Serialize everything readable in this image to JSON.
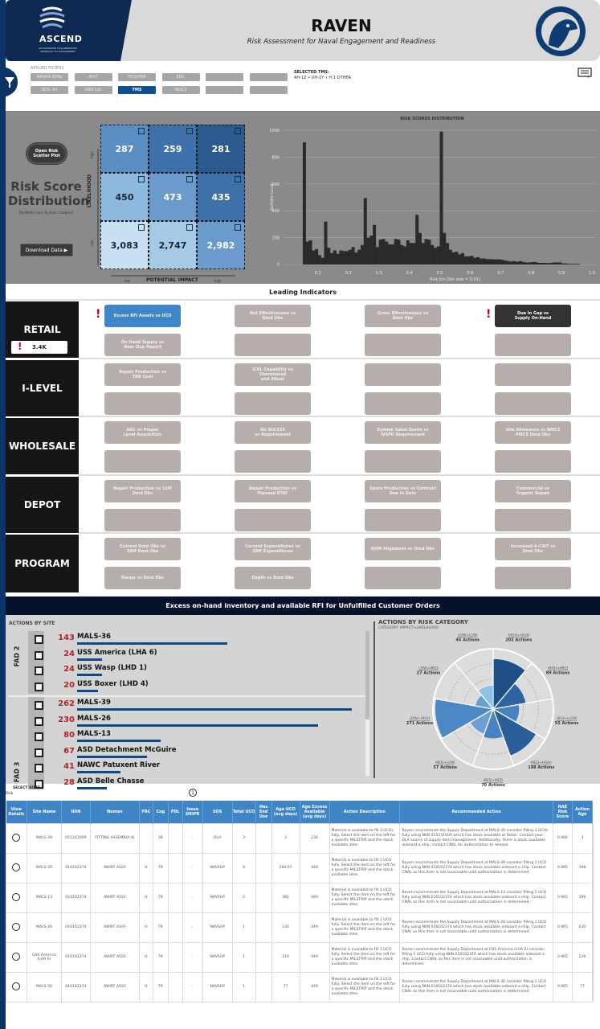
{
  "header": {
    "title": "RAVEN",
    "subtitle": "Risk Assessment for Naval Engagement and Readiness",
    "logo_text": "ASCEND",
    "logo_tagline": "AN ADVANCED COLLABORATIVE APPROACH TO SUSTAINMENT",
    "colors": {
      "navy": "#0e2a52",
      "banner": "#d9d9d9"
    }
  },
  "filters": {
    "label": "APPLIED FILTERS",
    "row1": [
      "AMSRR NIINs",
      "INST",
      "PEO/PMA",
      "EOC",
      "",
      ""
    ],
    "row2": [
      "SOS: All",
      "NIIN List",
      "TMS",
      "WUC2",
      "",
      ""
    ],
    "active": "TMS",
    "selected_tms_label": "SELECTED TMS:",
    "selected_tms_value": "AH-1Z • UH-1Y • H-1 OTHER",
    "icons": [
      "filter-icon",
      "comment-icon"
    ]
  },
  "risk": {
    "open_scatter": "Open Risk Scatter Plot",
    "title": "Risk Score Distribution",
    "caption": "[NoRNIIN count by Risk Category]",
    "download": "Download Data ▶",
    "y_axis": "LIKELIHOOD",
    "y_high": "high",
    "y_low": "low",
    "x_axis": "POTENTIAL IMPACT",
    "x_low": "low",
    "x_high": "high",
    "matrix": [
      [
        "287",
        "259",
        "281"
      ],
      [
        "450",
        "473",
        "435"
      ],
      [
        "3,083",
        "2,747",
        "2,982"
      ]
    ]
  },
  "chart_data": {
    "type": "bar",
    "title": "RISK SCORES DISTRIBUTION",
    "xlabel": "Risk bin [bin size = 0.01]",
    "ylabel": "NoRNIIN Count",
    "xlim": [
      0,
      1.0
    ],
    "ylim": [
      0,
      1000
    ],
    "x_ticks": [
      "0.1",
      "0.2",
      "0.3",
      "0.4",
      "0.5",
      "0.6",
      "0.7",
      "0.8",
      "0.9",
      "1.0"
    ],
    "y_ticks": [
      "0",
      "200",
      "400",
      "600",
      "800",
      "1000"
    ],
    "grid": true,
    "bin_start": 0.05,
    "bin_size": 0.01,
    "values": [
      910,
      170,
      180,
      105,
      115,
      70,
      50,
      320,
      125,
      85,
      105,
      80,
      105,
      100,
      100,
      110,
      130,
      90,
      110,
      145,
      495,
      200,
      215,
      295,
      130,
      185,
      190,
      170,
      150,
      150,
      190,
      185,
      145,
      135,
      180,
      160,
      160,
      370,
      235,
      160,
      190,
      185,
      145,
      125,
      135,
      990,
      235,
      160,
      110,
      90,
      95,
      75,
      85,
      60,
      60,
      65,
      50,
      55,
      45,
      45,
      40,
      40,
      38,
      38,
      38,
      35,
      30,
      25,
      22,
      25,
      20,
      25,
      18,
      15,
      15,
      18,
      18,
      12,
      12,
      12,
      10,
      12,
      15,
      15,
      15,
      8,
      8,
      5,
      5,
      5,
      5
    ]
  },
  "leading": {
    "title": "Leading Indicators",
    "retail_badge": "3.4K",
    "sections": [
      {
        "label": "RETAIL",
        "buttons": [
          "Excess RFI Assets vs UCO",
          "Net Effectiveness vs\nDmd Obs",
          "Gross Effectiveness vs\nDmd Obs",
          "Due In Gap vs\nSupply On-Hand",
          "On Hand Supply vs\nNear Due Report",
          "",
          "",
          ""
        ]
      },
      {
        "label": "I-LEVEL",
        "buttons": [
          "Repair Production vs\nTRR Goal",
          "ICRL Capability vs Shorebased\nand Afloat",
          "",
          "",
          "",
          "",
          "",
          ""
        ]
      },
      {
        "label": "WHOLESALE",
        "buttons": [
          "AAC vs Proper\nLevel Acquisition",
          "No Bid/336\nvs Requirement",
          "System Sales Quote vs\nWSPD Requirement",
          "Site Allowance vs NMCS\nPMCS Dmd Obs",
          "",
          "",
          "",
          ""
        ]
      },
      {
        "label": "DEPOT",
        "buttons": [
          "Repair Production vs 12M\nDmd Obs",
          "Repair Production vs\nPlanned RTAT",
          "Spare Production vs Contract\nDue In Date",
          "Commercial vs\nOrganic Repair",
          "",
          "",
          "",
          ""
        ]
      },
      {
        "label": "PROGRAM",
        "buttons": [
          "Current Dmd Obs vs\n30M Dmd Obs",
          "Current Expenditures vs\n30M Expenditures",
          "BOM Alignment vs Dmd Obs",
          "Increased A-CWT vs\nDmd Obs",
          "Range vs Dmd Obs",
          "Depth vs Dmd Obs",
          "",
          ""
        ]
      }
    ]
  },
  "excess": {
    "banner": "Excess on-hand inventory and available RFI for Unfulfilled Customer Orders",
    "by_site_title": "ACTIONS BY SITE",
    "groups": [
      {
        "label": "FAD 2",
        "sites": [
          {
            "count": 143,
            "name": "MALS-36"
          },
          {
            "count": 24,
            "name": "USS America (LHA 6)"
          },
          {
            "count": 24,
            "name": "USS Wasp (LHD 1)"
          },
          {
            "count": 20,
            "name": "USS Boxer (LHD 4)"
          }
        ]
      },
      {
        "label": "FAD 3",
        "sites": [
          {
            "count": 262,
            "name": "MALS-39"
          },
          {
            "count": 230,
            "name": "MALS-26"
          },
          {
            "count": 80,
            "name": "MALS-13"
          },
          {
            "count": 67,
            "name": "ASD Detachment McGuire"
          },
          {
            "count": 41,
            "name": "NAWC Patuxent River"
          },
          {
            "count": 28,
            "name": "ASD Belle Chasse"
          }
        ]
      }
    ],
    "by_cat_title": "ACTIONS BY RISK CATEGORY",
    "by_cat_subtitle": "CATEGORY: IMPACT+LIKELIHOOD",
    "categories": [
      {
        "name": "HIGH+HIGH",
        "label": "202 Actions",
        "value": 202,
        "color": "#1f4f86"
      },
      {
        "name": "HIGH+MED",
        "label": "89 Actions",
        "value": 89,
        "color": "#2f64a0"
      },
      {
        "name": "HIGH+LOW",
        "label": "55 Actions",
        "value": 55,
        "color": "#4a82bf"
      },
      {
        "name": "MED+HIGH",
        "label": "198 Actions",
        "value": 198,
        "color": "#2a5e98"
      },
      {
        "name": "MED+MED",
        "label": "70 Actions",
        "value": 70,
        "color": "#4a82bf"
      },
      {
        "name": "MED+LOW",
        "label": "57 Actions",
        "value": 57,
        "color": "#6b9fd2"
      },
      {
        "name": "LOW+HIGH",
        "label": "271 Actions",
        "value": 271,
        "color": "#4d88c6"
      },
      {
        "name": "LOW+MED",
        "label": "27 Actions",
        "value": 27,
        "color": "#6b9fd2"
      },
      {
        "name": "LOW+LOW",
        "label": "45 Actions",
        "value": 45,
        "color": "#8fc1e6"
      }
    ],
    "sort_label": "SELECT SORT",
    "sort_value": "Risk",
    "page": "1"
  },
  "table": {
    "headers": [
      "View Details",
      "Site Name",
      "NIIN",
      "Nomen",
      "FRC",
      "Cog",
      "PBL",
      "Issue DRIPR",
      "SOS",
      "Total UCO",
      "Has End Use",
      "Age UCO (avg days)",
      "Age Excess Available (avg days)",
      "Action Description",
      "Recommended Action",
      "NAE Risk Score",
      "Action Age"
    ],
    "rows": [
      [
        "",
        "MALS-39",
        "015241009",
        "FITTING ASSEMBLY,AI",
        "",
        "3B",
        "",
        "-",
        "DLA",
        "3",
        "",
        "3",
        "236",
        "Material is available to fill 3 UCOs fully. Select the item on the left for a specific MILSTRIP and the stock available sites.",
        "Raven recommends the Supply Department at MALS-39 consider filling 3 UCOs fully using NIIN 015241009 which has stock available at Retail. Contact your DLA source of supply item management. Additionally, there is stock available onboard a ship, contact CNAL for authorization to release.",
        "0.966",
        "3"
      ],
      [
        "",
        "MALS-39",
        "016102374",
        "AWIRT ASSY",
        "H",
        "7R",
        "",
        "-",
        "NAVSUP",
        "6",
        "",
        "294.67",
        "449",
        "Material is available to fill 1 UCO fully. Select the item on the left for a specific MILSTRIP and the stock available sites.",
        "Raven recommends the Supply Department at MALS-39 consider filling 1 UCO fully using NIIN 016102374 which has stock available onboard a ship. Contact CNAL as this item is not sourceable until authorization is determined.",
        "0.965",
        "398"
      ],
      [
        "",
        "MALS-13",
        "016102374",
        "AWIRT ASSY",
        "H",
        "7R",
        "",
        "-",
        "NAVSUP",
        "2",
        "",
        "381",
        "449",
        "Material is available to fill 1 UCO fully. Select the item on the left for a specific MILSTRIP and the stock available sites.",
        "Raven recommends the Supply Department at MALS-13 consider filling 1 UCO fully using NIIN 016102374 which has stock available onboard a ship. Contact CNAL as this item is not sourceable until authorization is determined.",
        "0.965",
        "396"
      ],
      [
        "",
        "MALS-26",
        "016102374",
        "AWIRT ASSY",
        "H",
        "7R",
        "",
        "-",
        "NAVSUP",
        "1",
        "",
        "230",
        "449",
        "Material is available to fill 1 UCO fully. Select the item on the left for a specific MILSTRIP and the stock available sites.",
        "Raven recommends the Supply Department at MALS-26 consider filling 1 UCO fully using NIIN 016102374 which has stock available onboard a ship. Contact CNAL as this item is not sourceable until authorization is determined.",
        "0.965",
        "230"
      ],
      [
        "",
        "USS America (LHA 6)",
        "016102374",
        "AWIRT ASSY",
        "H",
        "7R",
        "",
        "-",
        "NAVSUP",
        "1",
        "",
        "216",
        "449",
        "Material is available to fill 1 UCO fully. Select the item on the left for a specific MILSTRIP and the stock available sites.",
        "Raven recommends the Supply Department at USS America (LHA 6) consider filling 1 UCO fully using NIIN 016102374 which has stock available onboard a ship. Contact CNAL as this item is not sourceable until authorization is determined.",
        "0.965",
        "216"
      ],
      [
        "",
        "MALS-36",
        "016102374",
        "AWIRT ASSY",
        "H",
        "7R",
        "",
        "-",
        "NAVSUP",
        "1",
        "",
        "77",
        "449",
        "Material is available to fill 1 UCO fully. Select the item on the left for a specific MILSTRIP and the stock available sites.",
        "Raven recommends the Supply Department at MALS-36 consider filling 1 UCO fully using NIIN 016102374 which has stock available onboard a ship. Contact CNAL as this item is not sourceable until authorization is determined.",
        "0.965",
        "77"
      ]
    ]
  }
}
